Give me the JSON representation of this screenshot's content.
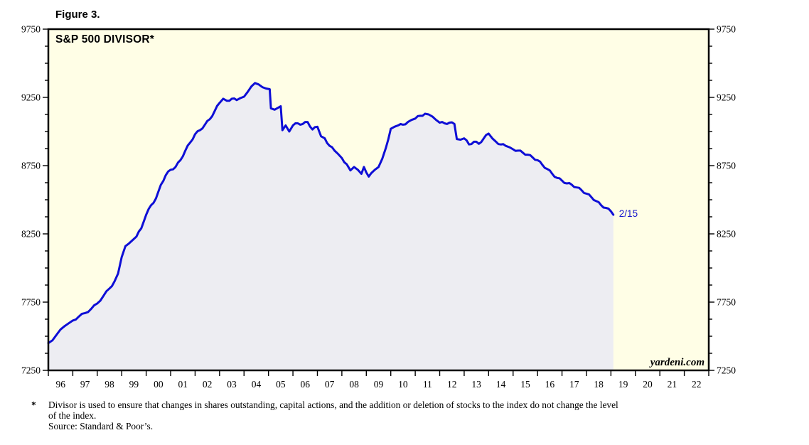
{
  "figure_label": "Figure 3.",
  "chart": {
    "title": "S&P 500 DIVISOR*",
    "watermark": "yardeni.com",
    "colors": {
      "page_bg": "#ffffff",
      "plot_bg": "#fffee6",
      "area_fill": "#ededf2",
      "line": "#0e0ed6",
      "border": "#000000",
      "annotation_text": "#1414cc"
    }
  },
  "chart_data": {
    "type": "area",
    "title": "S&P 500 DIVISOR*",
    "xlabel": "",
    "ylabel": "",
    "xlim": [
      1996,
      2023
    ],
    "ylim": [
      7250,
      9750
    ],
    "y_major_step": 500,
    "y_minor_step": 125,
    "y_tick_labels": [
      "7250",
      "7750",
      "8250",
      "8750",
      "9250",
      "9750"
    ],
    "y_axis_sides": [
      "left",
      "right"
    ],
    "x_tick_labels": [
      "96",
      "97",
      "98",
      "99",
      "00",
      "01",
      "02",
      "03",
      "04",
      "05",
      "06",
      "07",
      "08",
      "09",
      "10",
      "11",
      "12",
      "13",
      "14",
      "15",
      "16",
      "17",
      "18",
      "19",
      "20",
      "21",
      "22"
    ],
    "grid": false,
    "legend": "none",
    "annotation": {
      "text": "2/15"
    },
    "series": [
      {
        "name": "S&P 500 Divisor",
        "x": [
          1996.0,
          1996.17,
          1996.33,
          1996.5,
          1996.67,
          1996.83,
          1997.0,
          1997.25,
          1997.5,
          1997.75,
          1998.0,
          1998.25,
          1998.5,
          1998.7,
          1998.85,
          1999.0,
          1999.15,
          1999.3,
          1999.45,
          1999.6,
          1999.8,
          2000.0,
          2000.2,
          2000.4,
          2000.6,
          2000.8,
          2001.0,
          2001.2,
          2001.4,
          2001.6,
          2001.8,
          2002.0,
          2002.2,
          2002.4,
          2002.6,
          2002.8,
          2003.0,
          2003.15,
          2003.3,
          2003.5,
          2003.7,
          2003.85,
          2004.0,
          2004.15,
          2004.3,
          2004.45,
          2004.6,
          2004.75,
          2004.9,
          2005.05,
          2005.1,
          2005.25,
          2005.4,
          2005.5,
          2005.57,
          2005.7,
          2005.85,
          2006.0,
          2006.2,
          2006.4,
          2006.6,
          2006.8,
          2007.0,
          2007.15,
          2007.3,
          2007.5,
          2007.7,
          2007.85,
          2008.0,
          2008.2,
          2008.35,
          2008.5,
          2008.65,
          2008.8,
          2008.9,
          2009.0,
          2009.1,
          2009.2,
          2009.35,
          2009.5,
          2009.65,
          2009.8,
          2009.9,
          2010.0,
          2010.15,
          2010.3,
          2010.5,
          2010.7,
          2010.85,
          2011.0,
          2011.2,
          2011.4,
          2011.55,
          2011.7,
          2011.85,
          2012.0,
          2012.2,
          2012.4,
          2012.6,
          2012.7,
          2012.85,
          2013.0,
          2013.2,
          2013.4,
          2013.6,
          2013.8,
          2014.0,
          2014.15,
          2014.3,
          2014.5,
          2014.7,
          2014.85,
          2015.0,
          2015.2,
          2015.4,
          2015.6,
          2015.8,
          2016.0,
          2016.2,
          2016.4,
          2016.6,
          2016.8,
          2017.0,
          2017.2,
          2017.4,
          2017.6,
          2017.8,
          2018.0,
          2018.2,
          2018.4,
          2018.6,
          2018.8,
          2019.0,
          2019.1
        ],
        "y": [
          7450,
          7470,
          7510,
          7550,
          7575,
          7595,
          7615,
          7645,
          7670,
          7700,
          7740,
          7795,
          7850,
          7900,
          7960,
          8080,
          8160,
          8180,
          8205,
          8230,
          8290,
          8390,
          8460,
          8510,
          8610,
          8680,
          8720,
          8740,
          8790,
          8860,
          8920,
          8980,
          9010,
          9050,
          9090,
          9150,
          9210,
          9240,
          9225,
          9240,
          9230,
          9245,
          9255,
          9290,
          9330,
          9355,
          9345,
          9325,
          9315,
          9310,
          9170,
          9160,
          9175,
          9185,
          9010,
          9045,
          9000,
          9045,
          9060,
          9055,
          9070,
          9015,
          9035,
          8965,
          8950,
          8895,
          8860,
          8835,
          8805,
          8760,
          8715,
          8740,
          8720,
          8690,
          8740,
          8700,
          8670,
          8695,
          8720,
          8740,
          8800,
          8880,
          8945,
          9020,
          9035,
          9045,
          9050,
          9070,
          9085,
          9095,
          9115,
          9130,
          9125,
          9110,
          9085,
          9065,
          9060,
          9065,
          9055,
          8945,
          8940,
          8950,
          8905,
          8925,
          8910,
          8950,
          8985,
          8950,
          8925,
          8905,
          8895,
          8885,
          8870,
          8860,
          8845,
          8830,
          8810,
          8790,
          8755,
          8725,
          8690,
          8660,
          8640,
          8620,
          8610,
          8590,
          8570,
          8545,
          8520,
          8490,
          8460,
          8440,
          8415,
          8390
        ]
      }
    ]
  },
  "footnote": {
    "marker": "*",
    "lines": [
      "Divisor is used to ensure that changes in shares outstanding, capital actions, and the addition or deletion of stocks to the index do not change the level",
      "of the index.",
      "Source: Standard & Poor’s."
    ]
  }
}
